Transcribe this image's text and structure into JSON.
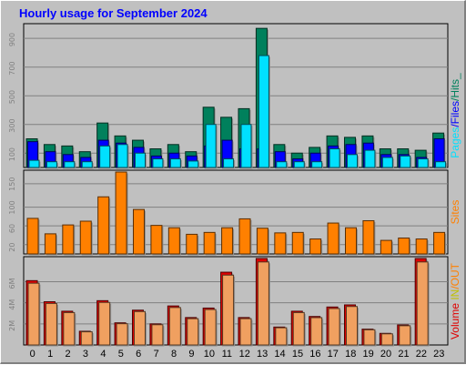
{
  "title": "Hourly usage for September 2024",
  "title_color": "#0000ff",
  "colors": {
    "pages": "#00805c",
    "files": "#0000ff",
    "hits": "#00e0ff",
    "sites": "#ff8000",
    "in": "#c0c000",
    "out": "#ff9a40",
    "volume": "#e00000",
    "volume_light": "#f0a060"
  },
  "labels": {
    "pages": "Pages",
    "files": "Files",
    "hits": "Hits",
    "sites": "Sites",
    "volume": "Volume",
    "in": "IN",
    "out": "OUT",
    "sep": "/",
    "trail": "_"
  },
  "chart_data": [
    {
      "type": "bar",
      "categories": [
        "0",
        "1",
        "2",
        "3",
        "4",
        "5",
        "6",
        "7",
        "8",
        "9",
        "10",
        "11",
        "12",
        "13",
        "14",
        "15",
        "16",
        "17",
        "18",
        "19",
        "20",
        "21",
        "22",
        "23"
      ],
      "yticks": [
        "100",
        "300",
        "500",
        "700",
        "900"
      ],
      "ylim": [
        0,
        990
      ],
      "series": [
        {
          "name": "Pages",
          "values": [
            200,
            160,
            150,
            110,
            310,
            220,
            190,
            130,
            160,
            110,
            420,
            350,
            410,
            970,
            160,
            100,
            140,
            220,
            210,
            220,
            130,
            130,
            120,
            240
          ]
        },
        {
          "name": "Files",
          "values": [
            180,
            110,
            90,
            70,
            190,
            170,
            140,
            80,
            100,
            80,
            150,
            190,
            130,
            130,
            110,
            60,
            100,
            150,
            160,
            170,
            90,
            90,
            70,
            200
          ]
        },
        {
          "name": "Hits",
          "values": [
            50,
            40,
            40,
            40,
            150,
            160,
            100,
            60,
            60,
            45,
            300,
            60,
            300,
            780,
            40,
            40,
            40,
            130,
            90,
            120,
            70,
            80,
            60,
            40
          ]
        }
      ]
    },
    {
      "type": "bar",
      "categories": [
        "0",
        "1",
        "2",
        "3",
        "4",
        "5",
        "6",
        "7",
        "8",
        "9",
        "10",
        "11",
        "12",
        "13",
        "14",
        "15",
        "16",
        "17",
        "18",
        "19",
        "20",
        "21",
        "22",
        "23"
      ],
      "yticks": [
        "20",
        "60",
        "100",
        "150"
      ],
      "ylim": [
        0,
        175
      ],
      "series": [
        {
          "name": "Sites",
          "values": [
            76,
            43,
            62,
            70,
            122,
            175,
            95,
            61,
            56,
            42,
            46,
            56,
            75,
            55,
            45,
            46,
            32,
            66,
            56,
            71,
            29,
            34,
            32,
            46
          ]
        }
      ]
    },
    {
      "type": "bar",
      "categories": [
        "0",
        "1",
        "2",
        "3",
        "4",
        "5",
        "6",
        "7",
        "8",
        "9",
        "10",
        "11",
        "12",
        "13",
        "14",
        "15",
        "16",
        "17",
        "18",
        "19",
        "20",
        "21",
        "22",
        "23"
      ],
      "yticks": [
        "2M",
        "4M",
        "6M"
      ],
      "ylim": [
        0,
        8.2
      ],
      "series": [
        {
          "name": "Volume",
          "values": [
            6.1,
            4.1,
            3.2,
            1.3,
            4.2,
            2.1,
            3.3,
            2.0,
            3.7,
            2.6,
            3.5,
            6.9,
            2.6,
            8.2,
            1.7,
            3.2,
            2.7,
            3.6,
            3.8,
            1.5,
            1.1,
            1.9,
            8.2,
            0.0
          ]
        }
      ]
    }
  ]
}
